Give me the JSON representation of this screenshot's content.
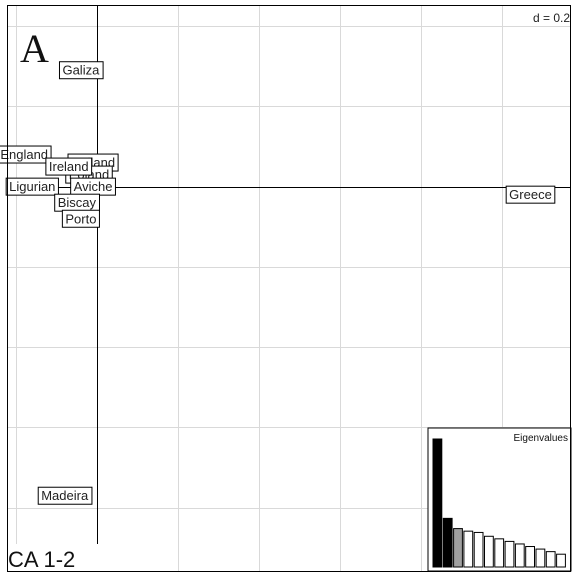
{
  "panel_letter": "A",
  "scale_label": "d = 0.2",
  "axes_label": "CA 1-2",
  "chart_data": {
    "type": "scatter",
    "x_axis": "CA axis 1",
    "y_axis": "CA axis 2",
    "grid_step": 0.2,
    "xlim": [
      -0.22,
      1.17
    ],
    "ylim": [
      -0.96,
      0.45
    ],
    "grid": true,
    "points": [
      {
        "label": "Galiza",
        "x": -0.04,
        "y": 0.29
      },
      {
        "label": "England",
        "x": -0.18,
        "y": 0.08
      },
      {
        "label": "Holland",
        "x": -0.01,
        "y": 0.06
      },
      {
        "label": "Poland",
        "x": -0.02,
        "y": 0.03
      },
      {
        "label": "Ireland",
        "x": -0.07,
        "y": 0.05
      },
      {
        "label": "Ligurian",
        "x": -0.16,
        "y": 0.0
      },
      {
        "label": "Aviche",
        "x": -0.01,
        "y": 0.0
      },
      {
        "label": "Biscay",
        "x": -0.05,
        "y": -0.04
      },
      {
        "label": "Porto",
        "x": -0.04,
        "y": -0.08
      },
      {
        "label": "Greece",
        "x": 1.07,
        "y": -0.02
      },
      {
        "label": "Madeira",
        "x": -0.08,
        "y": -0.77
      }
    ],
    "eigenvalues": {
      "title": "Eigenvalues",
      "values": [
        1.0,
        0.38,
        0.3,
        0.28,
        0.27,
        0.24,
        0.22,
        0.2,
        0.18,
        0.16,
        0.14,
        0.12,
        0.1
      ],
      "bar_colors": [
        "#000000",
        "#000000",
        "#a0a0a0",
        "#ffffff",
        "#ffffff",
        "#ffffff",
        "#ffffff",
        "#ffffff",
        "#ffffff",
        "#ffffff",
        "#ffffff",
        "#ffffff",
        "#ffffff"
      ]
    }
  }
}
